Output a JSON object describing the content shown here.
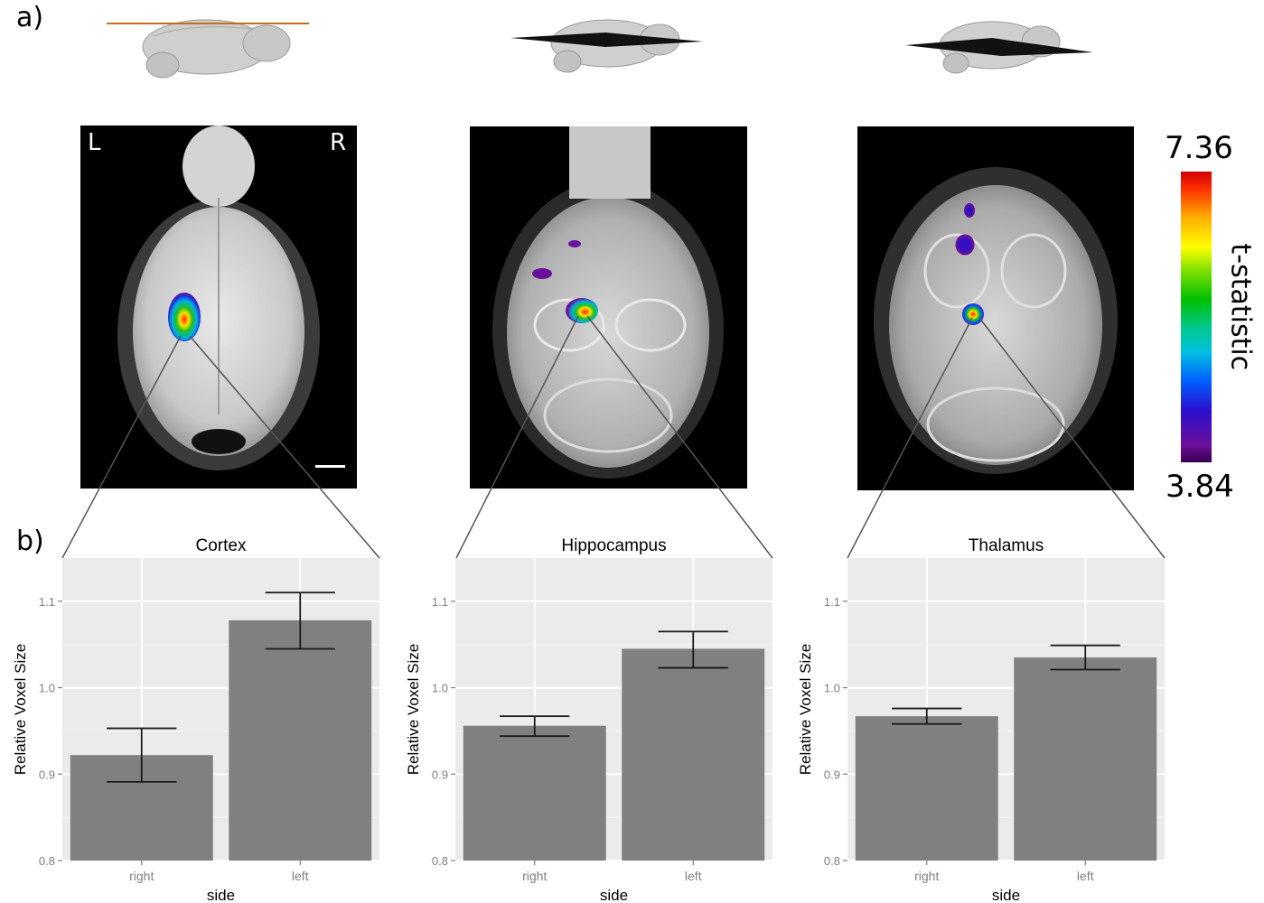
{
  "panels": {
    "a_label": "a)",
    "b_label": "b)"
  },
  "orientation": {
    "left": "L",
    "right": "R"
  },
  "colorbar": {
    "max": "7.36",
    "min": "3.84",
    "title": "t-statistic"
  },
  "chart_data": [
    {
      "type": "bar",
      "title": "Cortex",
      "categories": [
        "right",
        "left"
      ],
      "values": [
        0.922,
        1.078
      ],
      "error_low": [
        0.891,
        1.045
      ],
      "error_high": [
        0.953,
        1.11
      ],
      "xlabel": "side",
      "ylabel": "Relative Voxel Size",
      "ylim": [
        0.8,
        1.15
      ],
      "yticks": [
        "0.8",
        "0.9",
        "1.0",
        "1.1"
      ],
      "grid": true
    },
    {
      "type": "bar",
      "title": "Hippocampus",
      "categories": [
        "right",
        "left"
      ],
      "values": [
        0.956,
        1.045
      ],
      "error_low": [
        0.944,
        1.023
      ],
      "error_high": [
        0.967,
        1.065
      ],
      "xlabel": "side",
      "ylabel": "Relative Voxel Size",
      "ylim": [
        0.8,
        1.15
      ],
      "yticks": [
        "0.8",
        "0.9",
        "1.0",
        "1.1"
      ],
      "grid": true
    },
    {
      "type": "bar",
      "title": "Thalamus",
      "categories": [
        "right",
        "left"
      ],
      "values": [
        0.967,
        1.035
      ],
      "error_low": [
        0.958,
        1.021
      ],
      "error_high": [
        0.976,
        1.049
      ],
      "xlabel": "side",
      "ylabel": "Relative Voxel Size",
      "ylim": [
        0.8,
        1.15
      ],
      "yticks": [
        "0.8",
        "0.9",
        "1.0",
        "1.1"
      ],
      "grid": true
    }
  ],
  "colors": {
    "panel_bg": "#ebebeb",
    "grid": "#ffffff",
    "bar": "#808080",
    "errorbar": "#1a1a1a",
    "tick_label": "#7f7f7f"
  }
}
